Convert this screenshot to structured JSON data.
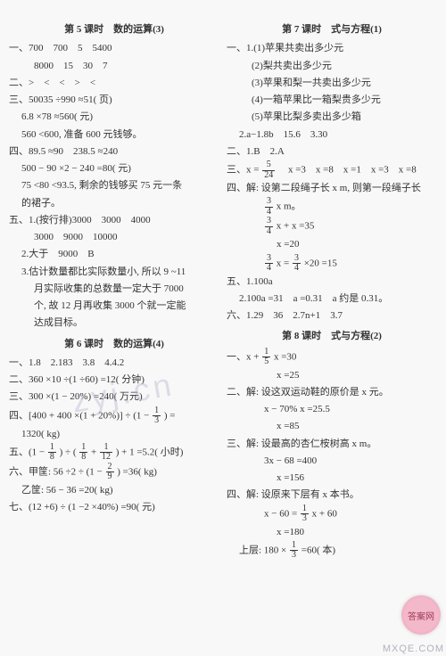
{
  "left": {
    "s5": {
      "title": "第 5 课时　数的运算(3)",
      "l1": "一、700　700　5　5400",
      "l2": "8000　15　30　7",
      "l3": "二、>　<　<　>　<",
      "l4": "三、50035 ÷990 ≈51( 页)",
      "l5": "6.8 ×78 ≈560( 元)",
      "l6": "560 <600, 准备 600 元钱够。",
      "l7": "四、89.5 ≈90　238.5 ≈240",
      "l8": "500 − 90 ×2 − 240 =80( 元)",
      "l9": "75 <80 <93.5, 剩余的钱够买 75 元一条",
      "l10": "的裙子。",
      "l11": "五、1.(按行排)3000　3000　4000",
      "l12": "3000　9000　10000",
      "l13": "2.大于　9000　B",
      "l14": "3.估计数量都比实际数量小, 所以 9 ~11",
      "l15": "月实际收集的总数量一定大于 7000",
      "l16": "个, 故 12 月再收集 3000 个就一定能",
      "l17": "达成目标。"
    },
    "s6": {
      "title": "第 6 课时　数的运算(4)",
      "l1": "一、1.8　2.183　3.8　4.4.2",
      "l2": "二、360 ×10 ÷(1 ÷60) =12( 分钟)",
      "l3": "三、300 ×(1 − 20%) =240( 万元)",
      "l4a": "四、[400 + 400 ×(1 + 20%)] ÷ (1 − ",
      "l4b": ") =",
      "l4c": "1320( kg)",
      "l5a": "五、(1 − ",
      "l5b": ") ÷ (",
      "l5c": " + ",
      "l5d": ") + 1 =5.2( 小时)",
      "l6a": "六、甲筐: 56 ÷2 ÷ (1 − ",
      "l6b": ") =36( kg)",
      "l6c": "乙筐: 56 − 36 =20( kg)",
      "l7": "七、(12 +6) ÷ (1 −2 ×40%) =90( 元)"
    }
  },
  "right": {
    "s7": {
      "title": "第 7 课时　式与方程(1)",
      "l1": "一、1.(1)苹果共卖出多少元",
      "l2": "(2)梨共卖出多少元",
      "l3": "(3)苹果和梨一共卖出多少元",
      "l4": "(4)一箱苹果比一箱梨贵多少元",
      "l5": "(5)苹果比梨多卖出多少箱",
      "l6": "2.a−1.8b　15.6　3.30",
      "l7": "二、1.B　2.A",
      "l8a": "三、x = ",
      "l8b": "　x =3　x =8　x =1　x =3　x =8",
      "l9": "四、解: 设第二段绳子长 x m, 则第一段绳子长",
      "l10a": " x m。",
      "l11a": " x + x =35",
      "l12": "x =20",
      "l13a": " x = ",
      "l13b": " ×20 =15",
      "l14": "五、1.100a",
      "l15": "2.100a =31　a =0.31　a 约是 0.31。",
      "l16": "六、1.29　36　2.7n+1　3.7"
    },
    "s8": {
      "title": "第 8 课时　式与方程(2)",
      "l1a": "一、x + ",
      "l1b": " x =30",
      "l2": "x =25",
      "l3": "二、解: 设这双运动鞋的原价是 x 元。",
      "l4": "x − 70% x =25.5",
      "l5": "x =85",
      "l6": "三、解: 设最高的杏仁桉树高 x m。",
      "l7": "3x − 68 =400",
      "l8": "x =156",
      "l9": "四、解: 设原来下层有 x 本书。",
      "l10a": "x − 60 = ",
      "l10b": " x + 60",
      "l11": "x =180",
      "l12a": "上层: 180 × ",
      "l12b": " =60( 本)"
    }
  },
  "fracs": {
    "f1_3": {
      "n": "1",
      "d": "3"
    },
    "f1_8": {
      "n": "1",
      "d": "8"
    },
    "f1_12": {
      "n": "1",
      "d": "12"
    },
    "f2_9": {
      "n": "2",
      "d": "9"
    },
    "f5_24": {
      "n": "5",
      "d": "24"
    },
    "f3_4": {
      "n": "3",
      "d": "4"
    },
    "f1_5": {
      "n": "1",
      "d": "5"
    }
  },
  "wm": {
    "center": "zyj.cn",
    "corner": "答案网",
    "bottom": "MXQE.COM"
  }
}
